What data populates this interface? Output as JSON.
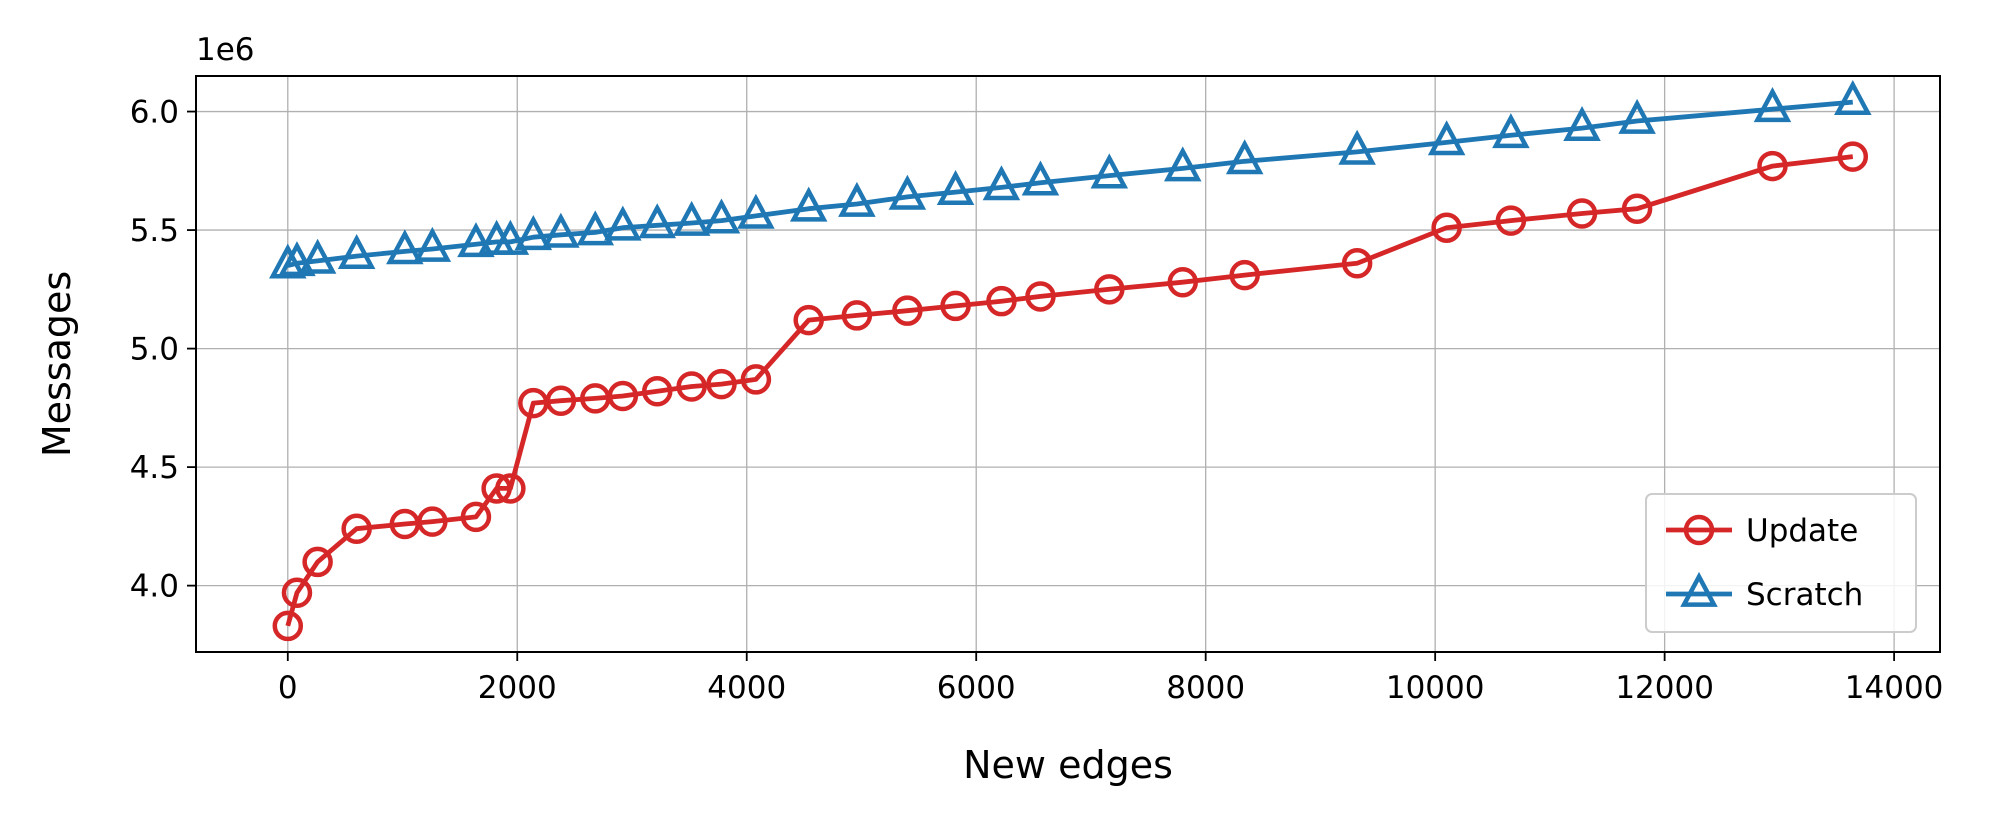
{
  "chart_data": {
    "type": "line",
    "xlabel": "New edges",
    "ylabel": "Messages",
    "y_offset_label": "1e6",
    "xlim": [
      -800,
      14400
    ],
    "ylim": [
      3.72,
      6.15
    ],
    "x_ticks": [
      0,
      2000,
      4000,
      6000,
      8000,
      10000,
      12000,
      14000
    ],
    "x_tick_labels": [
      "0",
      "2000",
      "4000",
      "6000",
      "8000",
      "10000",
      "12000",
      "14000"
    ],
    "y_ticks": [
      4.0,
      4.5,
      5.0,
      5.5,
      6.0
    ],
    "y_tick_labels": [
      "4.0",
      "4.5",
      "5.0",
      "5.5",
      "6.0"
    ],
    "grid": true,
    "legend_position": "lower-right",
    "series": [
      {
        "name": "Update",
        "color": "#d62728",
        "marker": "circle",
        "points": [
          [
            0,
            3.83
          ],
          [
            80,
            3.97
          ],
          [
            260,
            4.1
          ],
          [
            600,
            4.24
          ],
          [
            1020,
            4.26
          ],
          [
            1260,
            4.27
          ],
          [
            1640,
            4.29
          ],
          [
            1820,
            4.41
          ],
          [
            1940,
            4.41
          ],
          [
            2140,
            4.77
          ],
          [
            2380,
            4.78
          ],
          [
            2680,
            4.79
          ],
          [
            2920,
            4.8
          ],
          [
            3220,
            4.82
          ],
          [
            3520,
            4.84
          ],
          [
            3780,
            4.85
          ],
          [
            4080,
            4.87
          ],
          [
            4540,
            5.12
          ],
          [
            4960,
            5.14
          ],
          [
            5400,
            5.16
          ],
          [
            5820,
            5.18
          ],
          [
            6220,
            5.2
          ],
          [
            6560,
            5.22
          ],
          [
            7160,
            5.25
          ],
          [
            7800,
            5.28
          ],
          [
            8340,
            5.31
          ],
          [
            9320,
            5.36
          ],
          [
            10100,
            5.51
          ],
          [
            10660,
            5.54
          ],
          [
            11280,
            5.57
          ],
          [
            11760,
            5.59
          ],
          [
            12940,
            5.77
          ],
          [
            13640,
            5.81
          ]
        ]
      },
      {
        "name": "Scratch",
        "color": "#1f77b4",
        "marker": "triangle",
        "points": [
          [
            0,
            5.35
          ],
          [
            80,
            5.36
          ],
          [
            260,
            5.37
          ],
          [
            600,
            5.39
          ],
          [
            1020,
            5.41
          ],
          [
            1260,
            5.42
          ],
          [
            1640,
            5.44
          ],
          [
            1820,
            5.45
          ],
          [
            1940,
            5.45
          ],
          [
            2140,
            5.47
          ],
          [
            2380,
            5.48
          ],
          [
            2680,
            5.49
          ],
          [
            2920,
            5.51
          ],
          [
            3220,
            5.52
          ],
          [
            3520,
            5.53
          ],
          [
            3780,
            5.54
          ],
          [
            4080,
            5.56
          ],
          [
            4540,
            5.59
          ],
          [
            4960,
            5.61
          ],
          [
            5400,
            5.64
          ],
          [
            5820,
            5.66
          ],
          [
            6220,
            5.68
          ],
          [
            6560,
            5.7
          ],
          [
            7160,
            5.73
          ],
          [
            7800,
            5.76
          ],
          [
            8340,
            5.79
          ],
          [
            9320,
            5.83
          ],
          [
            10100,
            5.87
          ],
          [
            10660,
            5.9
          ],
          [
            11280,
            5.93
          ],
          [
            11760,
            5.96
          ],
          [
            12940,
            6.01
          ],
          [
            13640,
            6.04
          ]
        ]
      }
    ]
  }
}
